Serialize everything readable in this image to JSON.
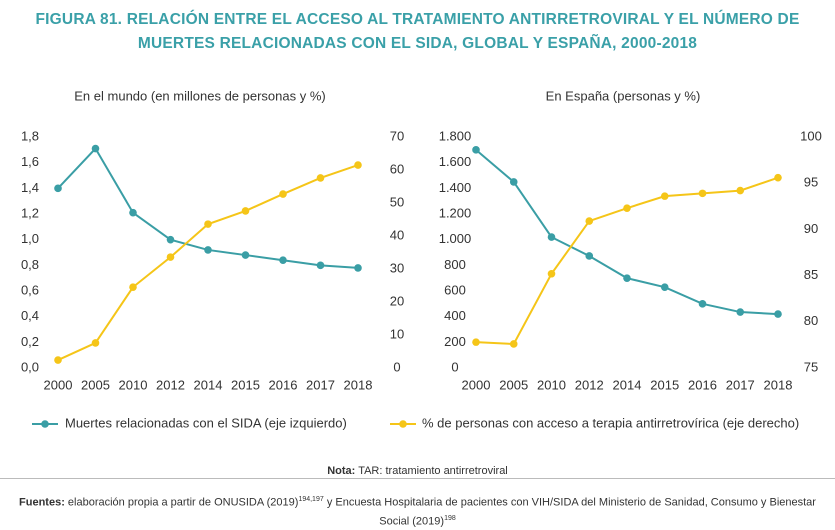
{
  "title": "FIGURA 81. RELACIÓN ENTRE EL ACCESO AL TRATAMIENTO ANTIRRETROVIRAL Y EL NÚMERO DE MUERTES RELACIONADAS CON EL SIDA, GLOBAL Y ESPAÑA, 2000-2018",
  "chart_data": [
    {
      "type": "line",
      "subtitle": "En el mundo (en millones de personas y %)",
      "categories": [
        "2000",
        "2005",
        "2010",
        "2012",
        "2014",
        "2015",
        "2016",
        "2017",
        "2018"
      ],
      "ylim": [
        0,
        1.8
      ],
      "yticks": [
        {
          "value": 0,
          "label": "0,0"
        },
        {
          "value": 0.2,
          "label": "0,2"
        },
        {
          "value": 0.4,
          "label": "0,4"
        },
        {
          "value": 0.6,
          "label": "0,6"
        },
        {
          "value": 0.8,
          "label": "0,8"
        },
        {
          "value": 1.0,
          "label": "1,0"
        },
        {
          "value": 1.2,
          "label": "1,2"
        },
        {
          "value": 1.4,
          "label": "1,4"
        },
        {
          "value": 1.6,
          "label": "1,6"
        },
        {
          "value": 1.8,
          "label": "1,8"
        }
      ],
      "y2lim": [
        0,
        70
      ],
      "y2ticks": [
        0,
        10,
        20,
        30,
        40,
        50,
        60,
        70
      ],
      "series": [
        {
          "name": "Muertes relacionadas con el SIDA (eje izquierdo)",
          "color": "#3a9ea5",
          "values": [
            1.4,
            1.71,
            1.21,
            1.0,
            0.92,
            0.88,
            0.84,
            0.8,
            0.78
          ]
        },
        {
          "name": "% de personas con acceso a terapia antirretrovírica (eje derecho)",
          "color": "#f5c518",
          "axis": "y2",
          "values": [
            2.4,
            7.6,
            24.5,
            33.6,
            43.6,
            47.6,
            52.7,
            57.6,
            61.5
          ]
        }
      ]
    },
    {
      "type": "line",
      "subtitle": "En España (personas y %)",
      "categories": [
        "2000",
        "2005",
        "2010",
        "2012",
        "2014",
        "2015",
        "2016",
        "2017",
        "2018"
      ],
      "ylim": [
        0,
        1800
      ],
      "yticks": [
        0,
        200,
        400,
        600,
        800,
        {
          "value": 1000,
          "label": "1.000"
        },
        {
          "value": 1200,
          "label": "1.200"
        },
        {
          "value": 1400,
          "label": "1.400"
        },
        {
          "value": 1600,
          "label": "1.600"
        },
        {
          "value": 1800,
          "label": "1.800"
        }
      ],
      "y2lim": [
        75,
        100
      ],
      "y2ticks": [
        75,
        80,
        85,
        90,
        95,
        100
      ],
      "series": [
        {
          "color": "#3a9ea5",
          "values": [
            1700,
            1450,
            1020,
            873,
            700,
            630,
            500,
            436,
            420
          ]
        },
        {
          "color": "#f5c518",
          "axis": "y2",
          "values": [
            77.8,
            77.6,
            85.2,
            90.9,
            92.3,
            93.6,
            93.9,
            94.2,
            95.6
          ]
        }
      ]
    }
  ],
  "note": {
    "label": "Nota:",
    "text": "TAR: tratamiento antirretroviral"
  },
  "sources": {
    "label": "Fuentes:",
    "text1": "elaboración propia a partir de ONUSIDA (2019)",
    "sup1": "194,197",
    "text2": "y Encuesta Hospitalaria de pacientes con VIH/SIDA del Ministerio de Sanidad, Consumo y Bienestar Social (2019)",
    "sup2": "198"
  }
}
